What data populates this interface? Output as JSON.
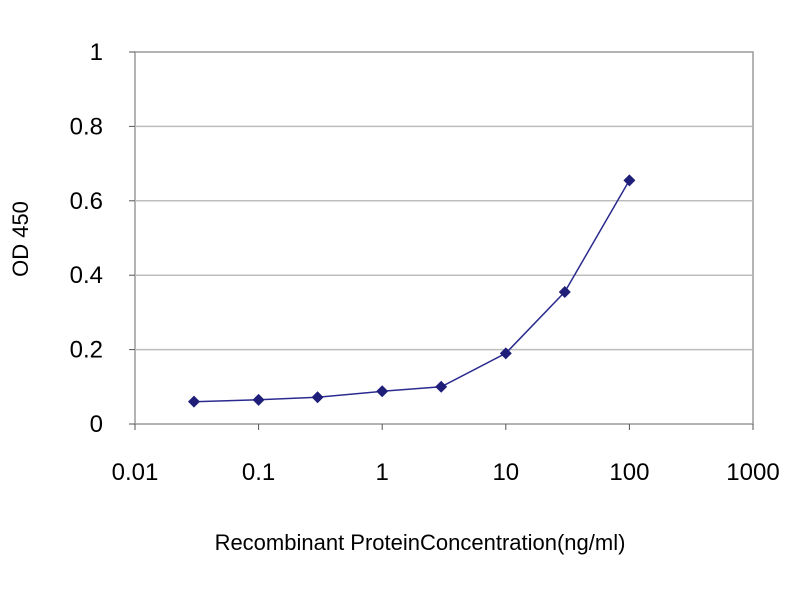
{
  "chart_data": {
    "type": "line",
    "title": "",
    "xlabel": "Recombinant ProteinConcentration(ng/ml)",
    "ylabel": "OD 450",
    "x_scale": "log",
    "xlim": [
      0.01,
      1000
    ],
    "ylim": [
      0,
      1
    ],
    "x_ticks": [
      0.01,
      0.1,
      1,
      10,
      100,
      1000
    ],
    "x_tick_labels": [
      "0.01",
      "0.1",
      "1",
      "10",
      "100",
      "1000"
    ],
    "y_ticks": [
      0,
      0.2,
      0.4,
      0.6,
      0.8,
      1
    ],
    "y_tick_labels": [
      "0",
      "0.2",
      "0.4",
      "0.6",
      "0.8",
      "1"
    ],
    "grid": "horizontal",
    "legend": "none",
    "series": [
      {
        "x": [
          0.03,
          0.1,
          0.3,
          1,
          3,
          10,
          30,
          100
        ],
        "y": [
          0.06,
          0.065,
          0.072,
          0.088,
          0.1,
          0.19,
          0.355,
          0.655
        ],
        "color": "#2b2b8f",
        "marker": "diamond"
      }
    ],
    "colors": {
      "line": "#2b2b8f",
      "marker": "#1f1f7a",
      "grid": "#bdbdbd",
      "frame": "#9a9a9a"
    }
  }
}
